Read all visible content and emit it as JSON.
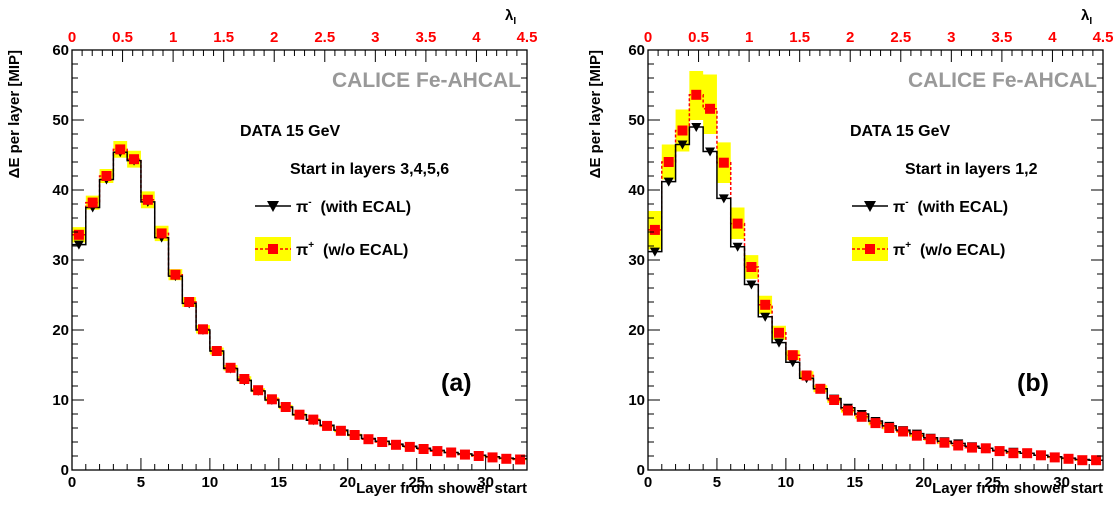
{
  "colors": {
    "pi_minus": "#000000",
    "pi_plus": "#ff0000",
    "band": "#ffff00",
    "brand": "#999999",
    "top_axis": "#ff0000"
  },
  "chart_data": [
    {
      "type": "line",
      "panel_label": "(a)",
      "brand": "CALICE Fe-AHCAL",
      "annotation_1": "DATA   15 GeV",
      "annotation_2": "Start in layers 3,4,5,6",
      "xlabel": "Layer from shower start",
      "ylabel": "ΔE per layer [MIP]",
      "top_axis_label": "λ",
      "top_axis_label_sub": "I",
      "xlim": [
        0,
        33
      ],
      "ylim": [
        0,
        60
      ],
      "x_ticks": [
        0,
        5,
        10,
        15,
        20,
        25,
        30
      ],
      "y_ticks": [
        0,
        10,
        20,
        30,
        40,
        50,
        60
      ],
      "top_lim": [
        0,
        4.5
      ],
      "top_ticks": [
        "0",
        "0.5",
        "1",
        "1.5",
        "2",
        "2.5",
        "3",
        "3.5",
        "4",
        "4.5"
      ],
      "x": [
        0.5,
        1.5,
        2.5,
        3.5,
        4.5,
        5.5,
        6.5,
        7.5,
        8.5,
        9.5,
        10.5,
        11.5,
        12.5,
        13.5,
        14.5,
        15.5,
        16.5,
        17.5,
        18.5,
        19.5,
        20.5,
        21.5,
        22.5,
        23.5,
        24.5,
        25.5,
        26.5,
        27.5,
        28.5,
        29.5,
        30.5,
        31.5,
        32.5
      ],
      "series": [
        {
          "name": "π⁻  (with ECAL)",
          "legend_main": "π",
          "legend_sup": "-",
          "legend_rest": "  (with ECAL)",
          "marker": "triangle-down",
          "values": [
            32.2,
            37.5,
            41.5,
            45.4,
            44.2,
            38.3,
            33.2,
            27.7,
            23.8,
            20.0,
            17.0,
            14.5,
            12.8,
            11.3,
            10.0,
            9.0,
            7.9,
            7.1,
            6.4,
            5.7,
            5.0,
            4.5,
            4.1,
            3.7,
            3.4,
            3.1,
            2.8,
            2.5,
            2.3,
            2.1,
            1.9,
            1.7,
            1.6
          ]
        },
        {
          "name": "π⁺  (w/o ECAL)",
          "legend_main": "π",
          "legend_sup": "+",
          "legend_rest": "  (w/o ECAL)",
          "marker": "square",
          "values": [
            33.6,
            38.2,
            42.0,
            45.8,
            44.4,
            38.6,
            33.8,
            27.9,
            24.0,
            20.1,
            17.0,
            14.6,
            13.0,
            11.4,
            10.1,
            9.0,
            7.9,
            7.2,
            6.3,
            5.6,
            5.0,
            4.4,
            4.0,
            3.6,
            3.3,
            3.0,
            2.7,
            2.5,
            2.2,
            2.0,
            1.8,
            1.6,
            1.5
          ],
          "band_low": [
            32.5,
            37.2,
            41.0,
            44.6,
            43.2,
            37.4,
            32.7,
            27.1,
            23.3,
            19.5,
            16.5,
            14.2,
            12.6,
            11.1,
            9.8,
            8.7,
            7.7,
            7.0,
            6.1,
            5.4,
            4.8,
            4.3,
            3.9,
            3.5,
            3.2,
            2.9,
            2.6,
            2.4,
            2.1,
            1.9,
            1.7,
            1.5,
            1.4
          ],
          "band_high": [
            34.7,
            39.2,
            43.0,
            47.0,
            45.6,
            39.8,
            34.9,
            28.7,
            24.7,
            20.7,
            17.5,
            15.0,
            13.4,
            11.7,
            10.4,
            9.3,
            8.1,
            7.4,
            6.5,
            5.8,
            5.2,
            4.5,
            4.1,
            3.7,
            3.4,
            3.1,
            2.8,
            2.6,
            2.3,
            2.1,
            1.9,
            1.7,
            1.6
          ]
        }
      ]
    },
    {
      "type": "line",
      "panel_label": "(b)",
      "brand": "CALICE Fe-AHCAL",
      "annotation_1": "DATA   15 GeV",
      "annotation_2": "Start in layers 1,2",
      "xlabel": "Layer from shower start",
      "ylabel": "ΔE per layer [MIP]",
      "top_axis_label": "λ",
      "top_axis_label_sub": "I",
      "xlim": [
        0,
        33
      ],
      "ylim": [
        0,
        60
      ],
      "x_ticks": [
        0,
        5,
        10,
        15,
        20,
        25,
        30
      ],
      "y_ticks": [
        0,
        10,
        20,
        30,
        40,
        50,
        60
      ],
      "top_lim": [
        0,
        4.5
      ],
      "top_ticks": [
        "0",
        "0.5",
        "1",
        "1.5",
        "2",
        "2.5",
        "3",
        "3.5",
        "4",
        "4.5"
      ],
      "x": [
        0.5,
        1.5,
        2.5,
        3.5,
        4.5,
        5.5,
        6.5,
        7.5,
        8.5,
        9.5,
        10.5,
        11.5,
        12.5,
        13.5,
        14.5,
        15.5,
        16.5,
        17.5,
        18.5,
        19.5,
        20.5,
        21.5,
        22.5,
        23.5,
        24.5,
        25.5,
        26.5,
        27.5,
        28.5,
        29.5,
        30.5,
        31.5,
        32.5
      ],
      "series": [
        {
          "name": "π⁻  (with ECAL)",
          "legend_main": "π",
          "legend_sup": "-",
          "legend_rest": "  (with ECAL)",
          "marker": "triangle-down",
          "values": [
            31.2,
            41.2,
            46.5,
            49.0,
            45.5,
            38.8,
            31.9,
            26.5,
            21.9,
            18.2,
            15.4,
            13.1,
            11.6,
            10.2,
            8.9,
            8.0,
            7.0,
            6.3,
            5.7,
            5.2,
            4.6,
            4.1,
            3.8,
            3.4,
            3.1,
            2.8,
            2.6,
            2.4,
            2.1,
            1.9,
            1.7,
            1.5,
            1.4
          ]
        },
        {
          "name": "π⁺  (w/o ECAL)",
          "legend_main": "π",
          "legend_sup": "+",
          "legend_rest": "  (w/o ECAL)",
          "marker": "square",
          "values": [
            34.3,
            44.0,
            48.5,
            53.6,
            51.6,
            43.9,
            35.2,
            29.0,
            23.6,
            19.6,
            16.4,
            13.5,
            11.6,
            10.0,
            8.5,
            7.6,
            6.7,
            6.0,
            5.5,
            4.9,
            4.4,
            3.9,
            3.5,
            3.2,
            3.1,
            2.7,
            2.4,
            2.4,
            2.1,
            1.8,
            1.6,
            1.4,
            1.4
          ],
          "band_low": [
            31.5,
            41.5,
            45.5,
            50.0,
            48.0,
            41.0,
            33.0,
            27.3,
            22.3,
            18.6,
            15.7,
            12.9,
            11.1,
            9.6,
            8.2,
            7.3,
            6.4,
            5.8,
            5.3,
            4.7,
            4.2,
            3.7,
            3.4,
            3.1,
            3.0,
            2.6,
            2.3,
            2.3,
            2.0,
            1.7,
            1.5,
            1.3,
            1.3
          ],
          "band_high": [
            37.0,
            46.5,
            51.5,
            57.0,
            56.5,
            46.8,
            37.5,
            30.7,
            24.9,
            20.6,
            17.1,
            14.1,
            12.1,
            10.4,
            8.8,
            7.9,
            7.0,
            6.2,
            5.7,
            5.1,
            4.6,
            4.1,
            3.6,
            3.3,
            3.2,
            2.8,
            2.5,
            2.5,
            2.2,
            1.9,
            1.7,
            1.5,
            1.5
          ]
        }
      ]
    }
  ]
}
